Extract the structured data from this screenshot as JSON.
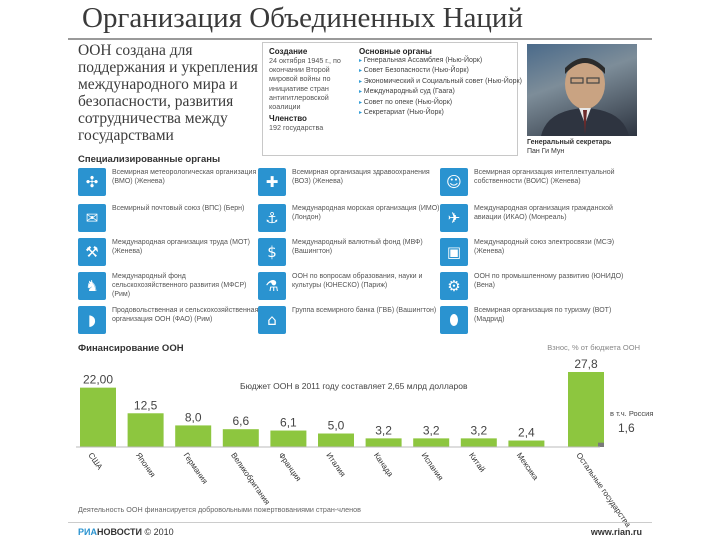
{
  "title": "Организация Объединенных Наций",
  "intro": "ООН создана для поддержания и укрепления международного мира и безопасности, развития сотрудничества между государствами",
  "info": {
    "created_head": "Создание",
    "created_text": "24 октября 1945 г., по окончании Второй мировой войны по инициативе стран антигитлеровской коалиции",
    "members_head": "Членство",
    "members_text": "192 государства",
    "organs_head": "Основные органы",
    "organs": [
      "Генеральная Ассамблея (Нью-Йорк)",
      "Совет Безопасности (Нью-Йорк)",
      "Экономический и Социальный совет (Нью-Йорк)",
      "Международный суд (Гаага)",
      "Совет по опеке (Нью-Йорк)",
      "Секретариат (Нью-Йорк)"
    ]
  },
  "secretary": {
    "role": "Генеральный секретарь",
    "name": "Пан Ги Мун"
  },
  "agencies_title": "Специализированные органы",
  "agencies": [
    {
      "text": "Всемирная метеорологическая организация (ВМО) (Женева)",
      "icon": "fan-icon",
      "glyph": "✣"
    },
    {
      "text": "Всемирная организация здравоохранения (ВОЗ) (Женева)",
      "icon": "medical-cross-icon",
      "glyph": "✚"
    },
    {
      "text": "Всемирная организация интеллектуальной собственности (ВОИС) (Женева)",
      "icon": "head-icon",
      "glyph": "☺"
    },
    {
      "text": "Всемирный почтовый союз (ВПС) (Берн)",
      "icon": "envelope-icon",
      "glyph": "✉"
    },
    {
      "text": "Международная морская организация (ИМО) (Лондон)",
      "icon": "anchor-icon",
      "glyph": "⚓"
    },
    {
      "text": "Международная организация гражданской авиации (ИКАО) (Монреаль)",
      "icon": "airplane-icon",
      "glyph": "✈"
    },
    {
      "text": "Международная организация труда (МОТ) (Женева)",
      "icon": "tools-icon",
      "glyph": "⚒"
    },
    {
      "text": "Международный валютный фонд (МВФ) (Вашингтон)",
      "icon": "dollar-icon",
      "glyph": "$"
    },
    {
      "text": "Международный союз электросвязи (МСЭ) (Женева)",
      "icon": "tv-icon",
      "glyph": "▣"
    },
    {
      "text": "Международный фонд сельскохозяйственного развития (МФСР) (Рим)",
      "icon": "rooster-icon",
      "glyph": "♞"
    },
    {
      "text": "ООН по вопросам образования, науки и культуры (ЮНЕСКО) (Париж)",
      "icon": "microscope-icon",
      "glyph": "⚗"
    },
    {
      "text": "ООН по промышленному развитию (ЮНИДО) (Вена)",
      "icon": "oil-pump-icon",
      "glyph": "⚙"
    },
    {
      "text": "Продовольственная и сельскохозяйственная организация ООН (ФАО) (Рим)",
      "icon": "bread-icon",
      "glyph": "◗"
    },
    {
      "text": "Группа всемирного банка (ГВБ) (Вашингтон)",
      "icon": "bank-icon",
      "glyph": "⌂"
    },
    {
      "text": "Всемирная организация по туризму (ВОТ) (Мадрид)",
      "icon": "surfboard-icon",
      "glyph": "⬮"
    }
  ],
  "finance_title": "Финансирование ООН",
  "finance_note": "Взнос, % от бюджета ООН",
  "budget_text": "Бюджет ООН в 2011 году составляет 2,65 млрд долларов",
  "russia_label": "в т.ч. Россия",
  "footer_note": "Деятельность ООН финансируется добровольными пожертвованиями стран-членов",
  "logo": {
    "ria": "РИА",
    "novosti": "НОВОСТИ",
    "year": "© 2010"
  },
  "site": "www.rian.ru",
  "colors": {
    "bar": "#8dc63f",
    "icon": "#2a93d0",
    "russia": "#7a7a7a"
  },
  "chart_data": {
    "type": "bar",
    "title": "Финансирование ООН",
    "ylabel": "Взнос, % от бюджета ООН",
    "categories": [
      "США",
      "Япония",
      "Германия",
      "Великобритания",
      "Франция",
      "Италия",
      "Канада",
      "Испания",
      "Китай",
      "Мексика",
      "Остальные государства"
    ],
    "value_labels": [
      "22,00",
      "12,5",
      "8,0",
      "6,6",
      "6,1",
      "5,0",
      "3,2",
      "3,2",
      "3,2",
      "2,4",
      "27,8"
    ],
    "values": [
      22.0,
      12.5,
      8.0,
      6.6,
      6.1,
      5.0,
      3.2,
      3.2,
      3.2,
      2.4,
      27.8
    ],
    "highlight": {
      "category": "в т.ч. Россия",
      "value_label": "1,6",
      "value": 1.6
    },
    "ylim": [
      0,
      27.8
    ],
    "grid": false,
    "legend": "none"
  }
}
